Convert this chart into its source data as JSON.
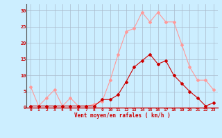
{
  "x": [
    0,
    1,
    2,
    3,
    4,
    5,
    6,
    7,
    8,
    9,
    10,
    11,
    12,
    13,
    14,
    15,
    16,
    17,
    18,
    19,
    20,
    21,
    22,
    23
  ],
  "rafales": [
    6.5,
    0.5,
    3,
    5.5,
    0.5,
    3,
    0.5,
    0.5,
    1,
    2,
    8.5,
    16.5,
    23.5,
    24.5,
    29.5,
    26.5,
    29.5,
    26.5,
    26.5,
    19.5,
    12.5,
    8.5,
    8.5,
    5.5
  ],
  "moyen": [
    0.5,
    0.5,
    0.5,
    0.5,
    0.5,
    0.5,
    0.5,
    0.5,
    0.5,
    2.5,
    2.5,
    4,
    8,
    12.5,
    14.5,
    16.5,
    13.5,
    14.5,
    10,
    7.5,
    5,
    3,
    0.5,
    1.5
  ],
  "bg_color": "#cceeff",
  "line_color_rafales": "#ff9999",
  "line_color_moyen": "#cc0000",
  "grid_color": "#aabbcc",
  "xlabel": "Vent moyen/en rafales ( km/h )",
  "ylabel_ticks": [
    0,
    5,
    10,
    15,
    20,
    25,
    30
  ],
  "xlim": [
    -0.5,
    23.5
  ],
  "ylim": [
    0,
    32
  ],
  "marker": "D",
  "marker_size": 2
}
